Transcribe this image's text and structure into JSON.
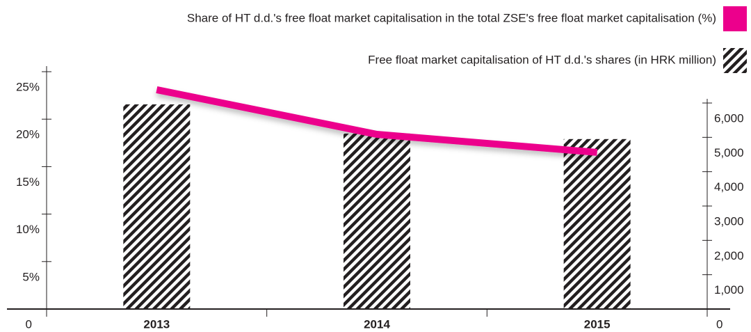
{
  "chart_data": {
    "type": "bar",
    "categories": [
      "2013",
      "2014",
      "2015"
    ],
    "series": [
      {
        "name": "Share of HT d.d.'s free float market capitalisation in the total ZSE's free float market capitalisation (%)",
        "type": "line",
        "axis": "y",
        "color": "#ec008c",
        "values": [
          23.1,
          18.4,
          16.5
        ]
      },
      {
        "name": "Free float market capitalisation of HT d.d.'s shares (in HRK million)",
        "type": "bar",
        "axis": "y2",
        "color": "#231f20",
        "values": [
          5960,
          5110,
          4950
        ]
      }
    ],
    "ylim": [
      0,
      25
    ],
    "yticks": [
      0,
      {
        "value": 5,
        "label": "5%"
      },
      {
        "value": 10,
        "label": "10%"
      },
      {
        "value": 15,
        "label": "15%"
      },
      {
        "value": 20,
        "label": "20%"
      },
      {
        "value": 25,
        "label": "25%"
      }
    ],
    "y2lim": [
      0,
      6000
    ],
    "y2ticks": [
      0,
      {
        "value": 1000,
        "label": "1,000"
      },
      {
        "value": 2000,
        "label": "2,000"
      },
      {
        "value": 3000,
        "label": "3,000"
      },
      {
        "value": 4000,
        "label": "4,000"
      },
      {
        "value": 5000,
        "label": "5,000"
      },
      {
        "value": 6000,
        "label": "6,000"
      }
    ],
    "legend": "top-right"
  }
}
